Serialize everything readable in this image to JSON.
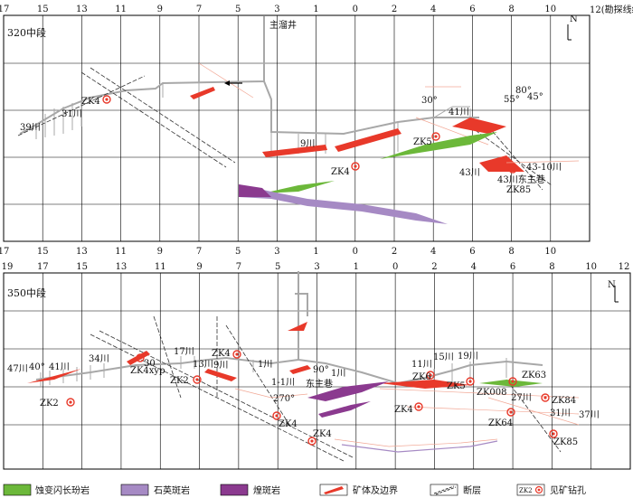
{
  "colors": {
    "grid": "#000000",
    "tunnel": "#a8a8a8",
    "ore": "#e8392a",
    "ore_light": "#f2a896",
    "diorite": "#6cb83a",
    "quartz_porphyry": "#a68ac4",
    "lamprophyre": "#8b3a8f",
    "fault": "#333333"
  },
  "upper_map": {
    "level_label": "320中段",
    "axis_note": "12(勘探线编号)",
    "top_ticks": [
      "17",
      "15",
      "13",
      "11",
      "9",
      "7",
      "5",
      "3",
      "1",
      "0",
      "2",
      "4",
      "6",
      "8",
      "10"
    ],
    "bottom_ticks": [
      "17",
      "15",
      "13",
      "11",
      "9",
      "7",
      "5",
      "3",
      "1",
      "0",
      "2",
      "4",
      "6",
      "8",
      "10"
    ],
    "labels": {
      "main_shaft": "主溜井",
      "zk4_a": "ZK4",
      "l31": "31川",
      "l39": "39川",
      "l9": "9川",
      "zk4_b": "ZK4",
      "zk5": "ZK5",
      "l41": "41川",
      "a30": "30°",
      "a55": "55°",
      "a80": "80°",
      "a45": "45°",
      "l43": "43川",
      "l4310": "43-10川",
      "l43east": "43川东主巷",
      "zk85": "ZK85",
      "north": "N"
    }
  },
  "lower_map": {
    "level_label": "350中段",
    "top_ticks": [
      "19",
      "17",
      "15",
      "13",
      "11",
      "9",
      "7",
      "5",
      "3",
      "1",
      "0",
      "2",
      "4",
      "6",
      "8",
      "10",
      "12"
    ],
    "labels": {
      "l47": "47川",
      "a40": "40°",
      "l41": "41川",
      "l34": "34川",
      "a30": "30",
      "zk4xyp": "ZK4xyp",
      "l17": "17川",
      "l13": "13川",
      "l9": "9川",
      "zk4a": "ZK4",
      "l1a": "1川",
      "zk2a": "ZK2",
      "zk2b": "ZK2",
      "l1_1": "1-1川",
      "a270": "270°",
      "zk4b": "ZK4",
      "east_main": "东主巷",
      "a90": "90°",
      "l1b": "1川",
      "zk4c": "ZK4",
      "zk6": "ZK6",
      "l11": "11川",
      "l15": "15川",
      "l19": "19川",
      "zk5": "ZK5",
      "zk008": "ZK008",
      "zk63": "ZK63",
      "l27": "27川",
      "zk84": "ZK84",
      "zk64": "ZK64",
      "l31": "31川",
      "l37": "37川",
      "zk85": "ZK85",
      "zk4d": "ZK4",
      "north": "N"
    }
  },
  "legend": [
    {
      "name": "legend-diorite",
      "label": "蚀变闪长玢岩"
    },
    {
      "name": "legend-quartz-porphyry",
      "label": "石英斑岩"
    },
    {
      "name": "legend-lamprophyre",
      "label": "煌斑岩"
    },
    {
      "name": "legend-orebody",
      "label": "矿体及边界"
    },
    {
      "name": "legend-fault",
      "label": "断层"
    },
    {
      "name": "legend-drillhole",
      "label": "见矿钻孔",
      "icon_text": "ZK2"
    }
  ]
}
